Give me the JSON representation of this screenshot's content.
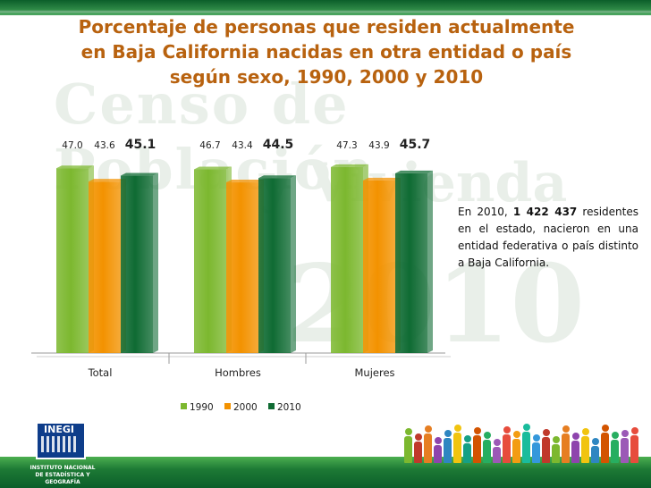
{
  "title": "Porcentaje de personas que residen actualmente en Baja California nacidas en otra entidad o país según sexo, 1990, 2000 y 2010",
  "title_lines": [
    "Porcentaje de personas que residen actualmente",
    "en Baja California nacidas en otra entidad o país",
    "según sexo, 1990, 2000 y 2010"
  ],
  "watermark": {
    "line1": "Censo de Población",
    "line2": "y Vivienda",
    "line3": "2010"
  },
  "chart_data": {
    "type": "bar",
    "categories": [
      "Total",
      "Hombres",
      "Mujeres"
    ],
    "series": [
      {
        "name": "1990",
        "values": [
          47.0,
          46.7,
          47.3
        ],
        "color": "#7cb82f"
      },
      {
        "name": "2000",
        "values": [
          43.6,
          43.4,
          43.9
        ],
        "color": "#f39200"
      },
      {
        "name": "2010",
        "values": [
          45.1,
          44.5,
          45.7
        ],
        "color": "#0f6b33"
      }
    ],
    "value_labels": [
      [
        "47.0",
        "43.6",
        "45.1"
      ],
      [
        "46.7",
        "43.4",
        "44.5"
      ],
      [
        "47.3",
        "43.9",
        "45.7"
      ]
    ],
    "title": "",
    "xlabel": "",
    "ylabel": "",
    "ylim": [
      0,
      50
    ],
    "legend_position": "bottom",
    "grid": false
  },
  "note": {
    "prefix": "En 2010, ",
    "highlight": "1 422 437",
    "suffix": " residentes en el estado, nacieron en una entidad federativa o país distinto a Baja California."
  },
  "logo": {
    "brand": "INEGI",
    "institute_line1": "INSTITUTO NACIONAL",
    "institute_line2": "DE ESTADÍSTICA Y GEOGRAFÍA"
  },
  "colors": {
    "title": "#b8620f",
    "band_green": "#0b5e2a",
    "people": [
      "#7cb82f",
      "#c0392b",
      "#e67e22",
      "#8e44ad",
      "#2e86c1",
      "#f1c40f",
      "#16a085",
      "#d35400",
      "#27ae60",
      "#9b59b6",
      "#e74c3c",
      "#f39c12",
      "#1abc9c",
      "#3498db",
      "#c0392b",
      "#7cb82f",
      "#e67e22",
      "#8e44ad",
      "#f1c40f",
      "#2e86c1",
      "#d35400",
      "#27ae60",
      "#9b59b6",
      "#e74c3c"
    ]
  }
}
